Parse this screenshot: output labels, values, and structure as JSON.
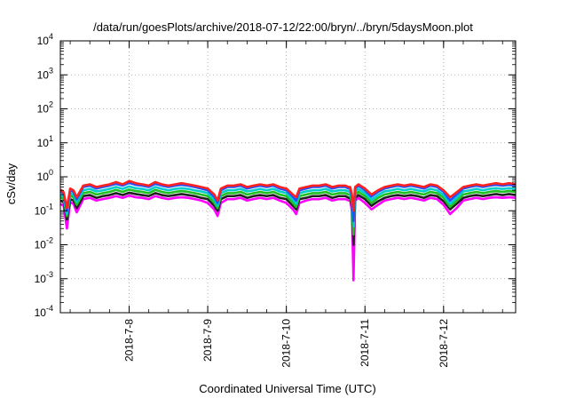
{
  "chart_data": {
    "type": "line",
    "title": "/data/run/goesPlots/archive/2018-07-12/22:00/bryn/../bryn/5daysMoon.plot",
    "xlabel": "Coordinated Universal Time (UTC)",
    "ylabel": "cSv/day",
    "yscale": "log",
    "ylim": [
      0.0001,
      10000
    ],
    "xlim": [
      "2018-07-07T03:00",
      "2018-07-12T22:00"
    ],
    "grid": true,
    "legend": "none",
    "x_ticks": [
      {
        "label": "2018-7-8",
        "x": "2018-07-08T00:00"
      },
      {
        "label": "2018-7-9",
        "x": "2018-07-09T00:00"
      },
      {
        "label": "2018-7-10",
        "x": "2018-07-10T00:00"
      },
      {
        "label": "2018-7-11",
        "x": "2018-07-11T00:00"
      },
      {
        "label": "2018-7-12",
        "x": "2018-07-12T00:00"
      }
    ],
    "y_ticks": [
      {
        "value": 0.0001,
        "base": "10",
        "exp": "-4"
      },
      {
        "value": 0.001,
        "base": "10",
        "exp": "-3"
      },
      {
        "value": 0.01,
        "base": "10",
        "exp": "-2"
      },
      {
        "value": 0.1,
        "base": "10",
        "exp": "-1"
      },
      {
        "value": 1,
        "base": "10",
        "exp": "0"
      },
      {
        "value": 10,
        "base": "10",
        "exp": "1"
      },
      {
        "value": 100,
        "base": "10",
        "exp": "2"
      },
      {
        "value": 1000,
        "base": "10",
        "exp": "3"
      },
      {
        "value": 10000,
        "base": "10",
        "exp": "4"
      }
    ],
    "x": [
      "2018-07-07T03:00",
      "2018-07-07T04:00",
      "2018-07-07T05:00",
      "2018-07-07T06:00",
      "2018-07-07T07:00",
      "2018-07-07T08:00",
      "2018-07-07T10:00",
      "2018-07-07T12:00",
      "2018-07-07T14:00",
      "2018-07-07T16:00",
      "2018-07-07T18:00",
      "2018-07-07T20:00",
      "2018-07-07T22:00",
      "2018-07-08T00:00",
      "2018-07-08T02:00",
      "2018-07-08T04:00",
      "2018-07-08T06:00",
      "2018-07-08T08:00",
      "2018-07-08T10:00",
      "2018-07-08T12:00",
      "2018-07-08T14:00",
      "2018-07-08T16:00",
      "2018-07-08T18:00",
      "2018-07-08T20:00",
      "2018-07-08T22:00",
      "2018-07-09T00:00",
      "2018-07-09T02:00",
      "2018-07-09T03:00",
      "2018-07-09T04:00",
      "2018-07-09T06:00",
      "2018-07-09T08:00",
      "2018-07-09T10:00",
      "2018-07-09T12:00",
      "2018-07-09T14:00",
      "2018-07-09T16:00",
      "2018-07-09T18:00",
      "2018-07-09T20:00",
      "2018-07-09T22:00",
      "2018-07-10T00:00",
      "2018-07-10T02:00",
      "2018-07-10T03:00",
      "2018-07-10T04:00",
      "2018-07-10T06:00",
      "2018-07-10T08:00",
      "2018-07-10T10:00",
      "2018-07-10T12:00",
      "2018-07-10T14:00",
      "2018-07-10T16:00",
      "2018-07-10T18:00",
      "2018-07-10T19:00",
      "2018-07-10T19:30",
      "2018-07-10T20:00",
      "2018-07-10T20:30",
      "2018-07-10T21:00",
      "2018-07-10T22:00",
      "2018-07-11T00:00",
      "2018-07-11T02:00",
      "2018-07-11T04:00",
      "2018-07-11T06:00",
      "2018-07-11T08:00",
      "2018-07-11T10:00",
      "2018-07-11T12:00",
      "2018-07-11T14:00",
      "2018-07-11T16:00",
      "2018-07-11T18:00",
      "2018-07-11T20:00",
      "2018-07-11T22:00",
      "2018-07-12T00:00",
      "2018-07-12T02:00",
      "2018-07-12T04:00",
      "2018-07-12T06:00",
      "2018-07-12T08:00",
      "2018-07-12T10:00",
      "2018-07-12T12:00",
      "2018-07-12T14:00",
      "2018-07-12T16:00",
      "2018-07-12T18:00",
      "2018-07-12T20:00",
      "2018-07-12T22:00"
    ],
    "series": [
      {
        "color": "#ff2020",
        "values": [
          0.42,
          0.35,
          0.12,
          0.45,
          0.4,
          0.25,
          0.55,
          0.6,
          0.5,
          0.55,
          0.6,
          0.7,
          0.6,
          0.75,
          0.65,
          0.6,
          0.55,
          0.7,
          0.6,
          0.55,
          0.6,
          0.65,
          0.6,
          0.55,
          0.5,
          0.45,
          0.3,
          0.2,
          0.45,
          0.55,
          0.55,
          0.6,
          0.5,
          0.55,
          0.6,
          0.55,
          0.6,
          0.5,
          0.45,
          0.3,
          0.25,
          0.45,
          0.5,
          0.55,
          0.55,
          0.6,
          0.5,
          0.55,
          0.55,
          0.5,
          0.5,
          0.3,
          0.1,
          0.5,
          0.6,
          0.45,
          0.3,
          0.4,
          0.5,
          0.55,
          0.6,
          0.55,
          0.6,
          0.55,
          0.5,
          0.6,
          0.55,
          0.4,
          0.25,
          0.35,
          0.5,
          0.55,
          0.6,
          0.55,
          0.6,
          0.65,
          0.6,
          0.65,
          0.6
        ]
      },
      {
        "color": "#2050ff",
        "values": [
          0.38,
          0.32,
          0.1,
          0.4,
          0.36,
          0.22,
          0.5,
          0.55,
          0.45,
          0.5,
          0.55,
          0.62,
          0.55,
          0.66,
          0.58,
          0.55,
          0.5,
          0.62,
          0.55,
          0.5,
          0.55,
          0.58,
          0.55,
          0.5,
          0.45,
          0.4,
          0.26,
          0.17,
          0.4,
          0.5,
          0.5,
          0.55,
          0.45,
          0.5,
          0.55,
          0.5,
          0.55,
          0.45,
          0.4,
          0.26,
          0.2,
          0.4,
          0.45,
          0.5,
          0.5,
          0.55,
          0.45,
          0.5,
          0.5,
          0.45,
          0.45,
          0.25,
          0.05,
          0.45,
          0.55,
          0.4,
          0.26,
          0.36,
          0.45,
          0.5,
          0.55,
          0.5,
          0.55,
          0.5,
          0.45,
          0.55,
          0.5,
          0.36,
          0.2,
          0.3,
          0.45,
          0.5,
          0.55,
          0.5,
          0.55,
          0.58,
          0.55,
          0.58,
          0.55
        ]
      },
      {
        "color": "#00cccc",
        "values": [
          0.3,
          0.26,
          0.08,
          0.33,
          0.3,
          0.18,
          0.4,
          0.44,
          0.37,
          0.4,
          0.44,
          0.5,
          0.44,
          0.52,
          0.46,
          0.44,
          0.4,
          0.5,
          0.44,
          0.4,
          0.44,
          0.46,
          0.44,
          0.4,
          0.37,
          0.33,
          0.21,
          0.14,
          0.33,
          0.4,
          0.4,
          0.44,
          0.37,
          0.4,
          0.44,
          0.4,
          0.44,
          0.37,
          0.33,
          0.21,
          0.16,
          0.33,
          0.37,
          0.4,
          0.4,
          0.44,
          0.37,
          0.4,
          0.4,
          0.37,
          0.37,
          0.2,
          0.035,
          0.37,
          0.44,
          0.33,
          0.21,
          0.29,
          0.37,
          0.4,
          0.44,
          0.4,
          0.44,
          0.4,
          0.37,
          0.44,
          0.4,
          0.29,
          0.16,
          0.24,
          0.37,
          0.4,
          0.44,
          0.4,
          0.44,
          0.46,
          0.44,
          0.46,
          0.44
        ]
      },
      {
        "color": "#20c020",
        "values": [
          0.25,
          0.22,
          0.07,
          0.28,
          0.25,
          0.15,
          0.33,
          0.36,
          0.3,
          0.33,
          0.36,
          0.41,
          0.36,
          0.42,
          0.38,
          0.36,
          0.33,
          0.41,
          0.36,
          0.33,
          0.36,
          0.38,
          0.36,
          0.33,
          0.3,
          0.27,
          0.17,
          0.12,
          0.27,
          0.33,
          0.33,
          0.36,
          0.3,
          0.33,
          0.36,
          0.33,
          0.36,
          0.3,
          0.27,
          0.17,
          0.13,
          0.27,
          0.3,
          0.33,
          0.33,
          0.36,
          0.3,
          0.33,
          0.33,
          0.3,
          0.3,
          0.16,
          0.02,
          0.3,
          0.36,
          0.27,
          0.17,
          0.24,
          0.3,
          0.33,
          0.36,
          0.33,
          0.36,
          0.33,
          0.3,
          0.36,
          0.33,
          0.24,
          0.13,
          0.2,
          0.3,
          0.33,
          0.36,
          0.33,
          0.36,
          0.38,
          0.36,
          0.38,
          0.36
        ]
      },
      {
        "color": "#202020",
        "values": [
          0.2,
          0.18,
          0.055,
          0.22,
          0.2,
          0.12,
          0.27,
          0.29,
          0.24,
          0.27,
          0.29,
          0.33,
          0.29,
          0.34,
          0.31,
          0.29,
          0.27,
          0.33,
          0.29,
          0.27,
          0.29,
          0.31,
          0.29,
          0.27,
          0.24,
          0.22,
          0.14,
          0.1,
          0.22,
          0.27,
          0.27,
          0.29,
          0.24,
          0.27,
          0.29,
          0.27,
          0.29,
          0.24,
          0.22,
          0.14,
          0.11,
          0.22,
          0.24,
          0.27,
          0.27,
          0.29,
          0.24,
          0.27,
          0.27,
          0.24,
          0.24,
          0.13,
          0.01,
          0.24,
          0.29,
          0.22,
          0.14,
          0.19,
          0.24,
          0.27,
          0.29,
          0.27,
          0.29,
          0.27,
          0.24,
          0.29,
          0.27,
          0.19,
          0.11,
          0.16,
          0.24,
          0.27,
          0.29,
          0.27,
          0.29,
          0.31,
          0.29,
          0.31,
          0.29
        ]
      },
      {
        "color": "#ff00ff",
        "values": [
          0.16,
          0.14,
          0.03,
          0.18,
          0.16,
          0.09,
          0.22,
          0.24,
          0.2,
          0.22,
          0.24,
          0.27,
          0.24,
          0.28,
          0.25,
          0.24,
          0.22,
          0.27,
          0.24,
          0.22,
          0.24,
          0.25,
          0.24,
          0.22,
          0.2,
          0.17,
          0.11,
          0.07,
          0.17,
          0.22,
          0.22,
          0.24,
          0.2,
          0.22,
          0.24,
          0.22,
          0.24,
          0.2,
          0.17,
          0.11,
          0.08,
          0.17,
          0.2,
          0.22,
          0.22,
          0.24,
          0.2,
          0.22,
          0.22,
          0.2,
          0.2,
          0.1,
          0.0009,
          0.2,
          0.24,
          0.17,
          0.11,
          0.15,
          0.2,
          0.22,
          0.24,
          0.22,
          0.24,
          0.22,
          0.2,
          0.24,
          0.22,
          0.15,
          0.08,
          0.12,
          0.2,
          0.22,
          0.24,
          0.22,
          0.24,
          0.25,
          0.24,
          0.25,
          0.24
        ]
      }
    ]
  }
}
